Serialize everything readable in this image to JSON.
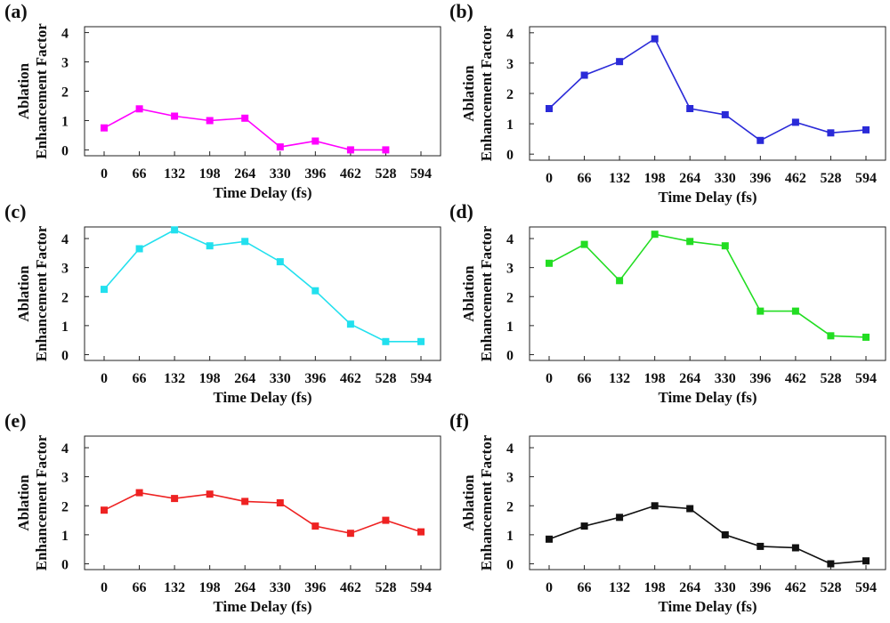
{
  "chart_data": [
    {
      "type": "line",
      "panel_label": "(a)",
      "xlabel": "Time Delay (fs)",
      "ylabel_line1": "Ablation",
      "ylabel_line2": "Enhancement Factor",
      "categories": [
        "0",
        "66",
        "132",
        "198",
        "264",
        "330",
        "396",
        "462",
        "528",
        "594"
      ],
      "yticks": [
        "0",
        "1",
        "2",
        "3",
        "4"
      ],
      "ylim": [
        -0.2,
        4.2
      ],
      "color": "#ff00ff",
      "series": [
        {
          "values": [
            0.75,
            1.4,
            1.15,
            1.0,
            1.08,
            0.1,
            0.3,
            0.0,
            0.0,
            null
          ]
        }
      ]
    },
    {
      "type": "line",
      "panel_label": "(b)",
      "xlabel": "Time Delay (fs)",
      "ylabel_line1": "Ablation",
      "ylabel_line2": "Enhancement Factor",
      "categories": [
        "0",
        "66",
        "132",
        "198",
        "264",
        "330",
        "396",
        "462",
        "528",
        "594"
      ],
      "yticks": [
        "0",
        "1",
        "2",
        "3",
        "4"
      ],
      "ylim": [
        -0.2,
        4.2
      ],
      "color": "#2a2ad8",
      "series": [
        {
          "values": [
            1.5,
            2.6,
            3.05,
            3.8,
            1.5,
            1.3,
            0.45,
            1.05,
            0.7,
            0.8
          ]
        }
      ]
    },
    {
      "type": "line",
      "panel_label": "(c)",
      "xlabel": "Time Delay (fs)",
      "ylabel_line1": "Ablation",
      "ylabel_line2": "Enhancement Factor",
      "categories": [
        "0",
        "66",
        "132",
        "198",
        "264",
        "330",
        "396",
        "462",
        "528",
        "594"
      ],
      "yticks": [
        "0",
        "1",
        "2",
        "3",
        "4"
      ],
      "ylim": [
        -0.2,
        4.4
      ],
      "color": "#22e0ee",
      "series": [
        {
          "values": [
            2.25,
            3.65,
            4.3,
            3.75,
            3.9,
            3.2,
            2.2,
            1.05,
            0.45,
            0.45
          ]
        }
      ]
    },
    {
      "type": "line",
      "panel_label": "(d)",
      "xlabel": "Time Delay (fs)",
      "ylabel_line1": "Ablation",
      "ylabel_line2": "Enhancement Factor",
      "categories": [
        "0",
        "66",
        "132",
        "198",
        "264",
        "330",
        "396",
        "462",
        "528",
        "594"
      ],
      "yticks": [
        "0",
        "1",
        "2",
        "3",
        "4"
      ],
      "ylim": [
        -0.2,
        4.4
      ],
      "color": "#22dd22",
      "series": [
        {
          "values": [
            3.15,
            3.8,
            2.55,
            4.15,
            3.9,
            3.75,
            1.5,
            1.5,
            0.65,
            0.6
          ]
        }
      ]
    },
    {
      "type": "line",
      "panel_label": "(e)",
      "xlabel": "Time Delay (fs)",
      "ylabel_line1": "Ablation",
      "ylabel_line2": "Enhancement Factor",
      "categories": [
        "0",
        "66",
        "132",
        "198",
        "264",
        "330",
        "396",
        "462",
        "528",
        "594"
      ],
      "yticks": [
        "0",
        "1",
        "2",
        "3",
        "4"
      ],
      "ylim": [
        -0.2,
        4.4
      ],
      "color": "#ee2222",
      "series": [
        {
          "values": [
            1.85,
            2.45,
            2.25,
            2.4,
            2.15,
            2.1,
            1.3,
            1.05,
            1.5,
            1.1
          ]
        }
      ]
    },
    {
      "type": "line",
      "panel_label": "(f)",
      "xlabel": "Time Delay (fs)",
      "ylabel_line1": "Ablation",
      "ylabel_line2": "Enhancement Factor",
      "categories": [
        "0",
        "66",
        "132",
        "198",
        "264",
        "330",
        "396",
        "462",
        "528",
        "594"
      ],
      "yticks": [
        "0",
        "1",
        "2",
        "3",
        "4"
      ],
      "ylim": [
        -0.2,
        4.4
      ],
      "color": "#111111",
      "series": [
        {
          "values": [
            0.85,
            1.3,
            1.6,
            2.0,
            1.9,
            1.0,
            0.6,
            0.55,
            0.0,
            0.1
          ]
        }
      ]
    }
  ]
}
